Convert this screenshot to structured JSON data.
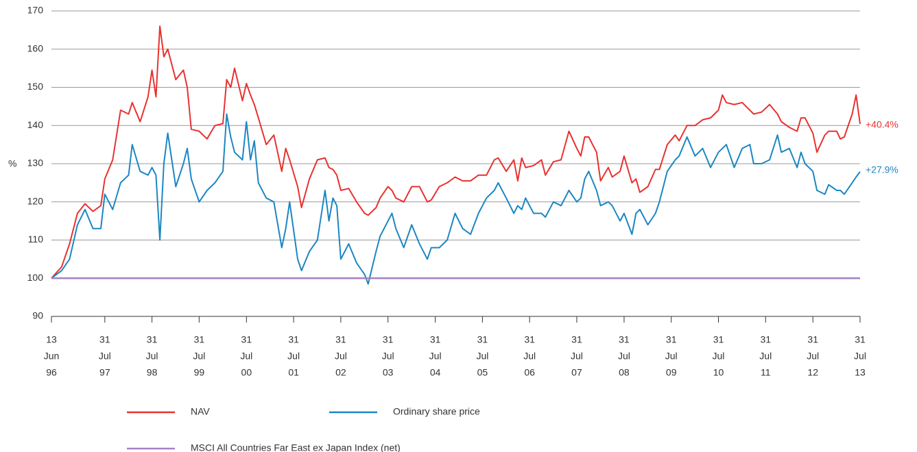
{
  "chart_data": {
    "type": "line",
    "y_label": "%",
    "x": [
      "1996-06-13",
      "1996-08",
      "1996-10",
      "1996-12",
      "1997-02",
      "1997-04",
      "1997-06",
      "1997-07",
      "1997-09",
      "1997-11",
      "1998-01",
      "1998-02",
      "1998-04",
      "1998-06",
      "1998-07",
      "1998-08",
      "1998-09",
      "1998-10",
      "1998-11",
      "1999-01",
      "1999-03",
      "1999-04",
      "1999-05",
      "1999-07",
      "1999-09",
      "1999-11",
      "2000-01",
      "2000-02",
      "2000-03",
      "2000-04",
      "2000-06",
      "2000-07",
      "2000-08",
      "2000-09",
      "2000-10",
      "2000-12",
      "2001-02",
      "2001-04",
      "2001-05",
      "2001-06",
      "2001-08",
      "2001-09",
      "2001-11",
      "2002-01",
      "2002-03",
      "2002-04",
      "2002-05",
      "2002-06",
      "2002-07",
      "2002-09",
      "2002-11",
      "2003-01",
      "2003-02",
      "2003-04",
      "2003-05",
      "2003-07",
      "2003-08",
      "2003-09",
      "2003-11",
      "2004-01",
      "2004-03",
      "2004-05",
      "2004-06",
      "2004-08",
      "2004-10",
      "2004-12",
      "2005-02",
      "2005-04",
      "2005-06",
      "2005-08",
      "2005-10",
      "2005-11",
      "2006-01",
      "2006-03",
      "2006-04",
      "2006-05",
      "2006-06",
      "2006-08",
      "2006-10",
      "2006-11",
      "2007-01",
      "2007-03",
      "2007-05",
      "2007-07",
      "2007-08",
      "2007-09",
      "2007-10",
      "2007-12",
      "2008-01",
      "2008-03",
      "2008-04",
      "2008-06",
      "2008-07",
      "2008-09",
      "2008-10",
      "2008-11",
      "2009-01",
      "2009-03",
      "2009-04",
      "2009-06",
      "2009-08",
      "2009-09",
      "2009-11",
      "2010-01",
      "2010-03",
      "2010-05",
      "2010-07",
      "2010-08",
      "2010-09",
      "2010-11",
      "2011-01",
      "2011-03",
      "2011-04",
      "2011-06",
      "2011-08",
      "2011-10",
      "2011-11",
      "2012-01",
      "2012-03",
      "2012-04",
      "2012-05",
      "2012-07",
      "2012-08",
      "2012-10",
      "2012-11",
      "2013-01",
      "2013-02",
      "2013-03",
      "2013-05",
      "2013-06",
      "2013-07-31"
    ],
    "series": [
      {
        "name": "NAV",
        "color": "#e8312f",
        "end_label": "+40.4%",
        "values": [
          100,
          103,
          109,
          117,
          119.5,
          117.5,
          119,
          126,
          131,
          144,
          143,
          146,
          141,
          147.5,
          154.5,
          147.5,
          166,
          158,
          160,
          152,
          154.5,
          150,
          139,
          138.5,
          136.5,
          140,
          140.5,
          152,
          150,
          155,
          146.5,
          151,
          148,
          145.5,
          142,
          135,
          137.5,
          128,
          134,
          131,
          124,
          118.5,
          126,
          131,
          131.5,
          129,
          128.5,
          127,
          123,
          123.5,
          120,
          117,
          116.5,
          118.5,
          121,
          124,
          123,
          121,
          120,
          124,
          124,
          120,
          120.5,
          124,
          125,
          126.5,
          125.5,
          125.5,
          127,
          127,
          131,
          131.5,
          128,
          131,
          125.5,
          131.5,
          129,
          129.5,
          131,
          127,
          130.5,
          131,
          138.5,
          134,
          132,
          137,
          137,
          133,
          125.5,
          129,
          126.5,
          128,
          132,
          125,
          126,
          122.5,
          124,
          128.5,
          128.5,
          135,
          137.5,
          136,
          140,
          140,
          141.5,
          142,
          144,
          148,
          146,
          145.5,
          146,
          144,
          143,
          143.5,
          145.5,
          143,
          141,
          139.5,
          138.5,
          142,
          142,
          138,
          133,
          137.5,
          138.5,
          138.5,
          136.5,
          137,
          143,
          148,
          140.4
        ]
      },
      {
        "name": "Ordinary share price",
        "color": "#1b86c2",
        "end_label": "+27.9%",
        "values": [
          100,
          102,
          105,
          114,
          118,
          113,
          113,
          122,
          118,
          125,
          127,
          135,
          128,
          127,
          129,
          127,
          110,
          130,
          138,
          124,
          130,
          134,
          126,
          120,
          123,
          125,
          128,
          143,
          137,
          133,
          131,
          141,
          131,
          136,
          125,
          121,
          120,
          108,
          113,
          120,
          105,
          102,
          107,
          110,
          123,
          115,
          121,
          119,
          105,
          109,
          104,
          101,
          98.5,
          107,
          111,
          115,
          117,
          113,
          108,
          114,
          109,
          105,
          108,
          108,
          110,
          117,
          113,
          111.5,
          117,
          121,
          123,
          125,
          121,
          117,
          119,
          118,
          121,
          117,
          117,
          116,
          120,
          119,
          123,
          120,
          121,
          126,
          128,
          123,
          119,
          120,
          119,
          115,
          117,
          111.5,
          117,
          118,
          114,
          117,
          120,
          128,
          131,
          132,
          137,
          132,
          134,
          129,
          133,
          134,
          135,
          129,
          134,
          135,
          130,
          130,
          131,
          137.5,
          133,
          134,
          129,
          133,
          130,
          128,
          123,
          122,
          124.5,
          123,
          123,
          122,
          125,
          126.5,
          127.9
        ]
      },
      {
        "name": "MSCI All Countries Far East ex Japan Index (net)",
        "color": "#a680c2",
        "x": [
          "1996-06-13",
          "2013-07-31"
        ],
        "values": [
          100,
          100
        ]
      }
    ],
    "ylim": [
      90,
      170
    ],
    "yticks": [
      90,
      100,
      110,
      120,
      130,
      140,
      150,
      160,
      170
    ],
    "xlim": [
      "1996-06-13",
      "2013-07-31"
    ],
    "xticks": [
      {
        "value": "1996-06-13",
        "label": [
          "13",
          "Jun",
          "96"
        ]
      },
      {
        "value": "1997-07-31",
        "label": [
          "31",
          "Jul",
          "97"
        ]
      },
      {
        "value": "1998-07-31",
        "label": [
          "31",
          "Jul",
          "98"
        ]
      },
      {
        "value": "1999-07-31",
        "label": [
          "31",
          "Jul",
          "99"
        ]
      },
      {
        "value": "2000-07-31",
        "label": [
          "31",
          "Jul",
          "00"
        ]
      },
      {
        "value": "2001-07-31",
        "label": [
          "31",
          "Jul",
          "01"
        ]
      },
      {
        "value": "2002-07-31",
        "label": [
          "31",
          "Jul",
          "02"
        ]
      },
      {
        "value": "2003-07-31",
        "label": [
          "31",
          "Jul",
          "03"
        ]
      },
      {
        "value": "2004-07-31",
        "label": [
          "31",
          "Jul",
          "04"
        ]
      },
      {
        "value": "2005-07-31",
        "label": [
          "31",
          "Jul",
          "05"
        ]
      },
      {
        "value": "2006-07-31",
        "label": [
          "31",
          "Jul",
          "06"
        ]
      },
      {
        "value": "2007-07-31",
        "label": [
          "31",
          "Jul",
          "07"
        ]
      },
      {
        "value": "2008-07-31",
        "label": [
          "31",
          "Jul",
          "08"
        ]
      },
      {
        "value": "2009-07-31",
        "label": [
          "31",
          "Jul",
          "09"
        ]
      },
      {
        "value": "2010-07-31",
        "label": [
          "31",
          "Jul",
          "10"
        ]
      },
      {
        "value": "2011-07-31",
        "label": [
          "31",
          "Jul",
          "11"
        ]
      },
      {
        "value": "2012-07-31",
        "label": [
          "31",
          "Jul",
          "12"
        ]
      },
      {
        "value": "2013-07-31",
        "label": [
          "31",
          "Jul",
          "13"
        ]
      }
    ],
    "grid": true
  }
}
